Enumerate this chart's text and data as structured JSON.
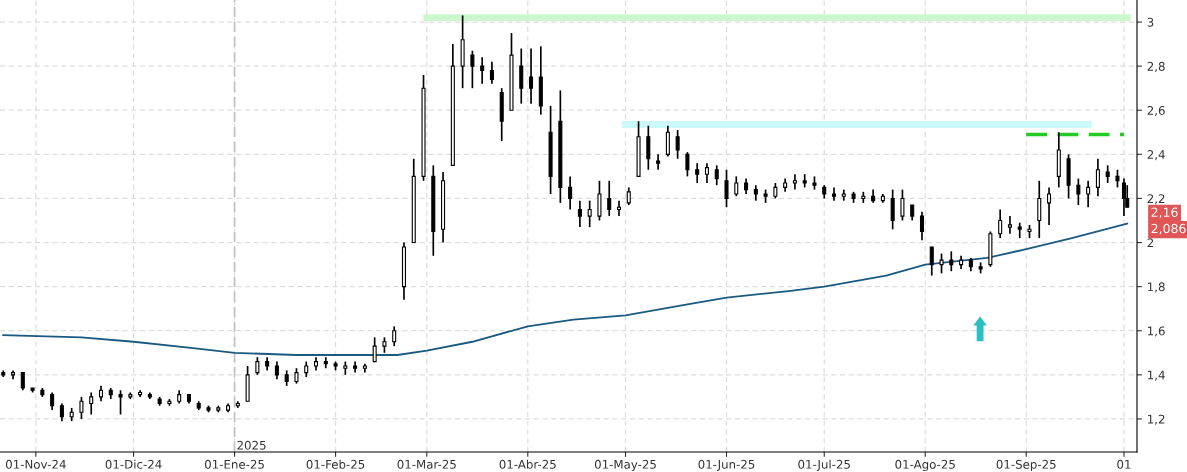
{
  "chart_data": {
    "type": "candlestick",
    "color": "#000000",
    "x": [
      "2024-10-22",
      "2024-10-25",
      "2024-10-28",
      "2024-10-31",
      "2024-11-03",
      "2024-11-06",
      "2024-11-09",
      "2024-11-12",
      "2024-11-15",
      "2024-11-18",
      "2024-11-21",
      "2024-11-24",
      "2024-11-27",
      "2024-11-30",
      "2024-12-03",
      "2024-12-06",
      "2024-12-09",
      "2024-12-12",
      "2024-12-15",
      "2024-12-18",
      "2024-12-21",
      "2024-12-24",
      "2024-12-27",
      "2024-12-30",
      "2025-01-02",
      "2025-01-05",
      "2025-01-08",
      "2025-01-11",
      "2025-01-14",
      "2025-01-17",
      "2025-01-20",
      "2025-01-23",
      "2025-01-26",
      "2025-01-29",
      "2025-02-01",
      "2025-02-04",
      "2025-02-07",
      "2025-02-10",
      "2025-02-13",
      "2025-02-16",
      "2025-02-19",
      "2025-02-22",
      "2025-02-25",
      "2025-02-28",
      "2025-03-03",
      "2025-03-06",
      "2025-03-09",
      "2025-03-12",
      "2025-03-15",
      "2025-03-18",
      "2025-03-21",
      "2025-03-24",
      "2025-03-27",
      "2025-03-30",
      "2025-04-02",
      "2025-04-05",
      "2025-04-08",
      "2025-04-11",
      "2025-04-14",
      "2025-04-17",
      "2025-04-20",
      "2025-04-23",
      "2025-04-26",
      "2025-04-29",
      "2025-05-02",
      "2025-05-05",
      "2025-05-08",
      "2025-05-11",
      "2025-05-14",
      "2025-05-17",
      "2025-05-20",
      "2025-05-23",
      "2025-05-26",
      "2025-05-29",
      "2025-06-01",
      "2025-06-04",
      "2025-06-07",
      "2025-06-10",
      "2025-06-13",
      "2025-06-16",
      "2025-06-19",
      "2025-06-22",
      "2025-06-25",
      "2025-06-28",
      "2025-07-01",
      "2025-07-04",
      "2025-07-07",
      "2025-07-10",
      "2025-07-13",
      "2025-07-16",
      "2025-07-19",
      "2025-07-22",
      "2025-07-25",
      "2025-07-28",
      "2025-07-31",
      "2025-08-03",
      "2025-08-06",
      "2025-08-09",
      "2025-08-12",
      "2025-08-15",
      "2025-08-18",
      "2025-08-21",
      "2025-08-24",
      "2025-08-27",
      "2025-08-30",
      "2025-09-02",
      "2025-09-05",
      "2025-09-08",
      "2025-09-11",
      "2025-09-14",
      "2025-09-17",
      "2025-09-20",
      "2025-09-23",
      "2025-09-26",
      "2025-09-29",
      "2025-10-01",
      "2025-10-02"
    ],
    "ohlc": [
      [
        1.41,
        1.42,
        1.39,
        1.4
      ],
      [
        1.4,
        1.42,
        1.38,
        1.41
      ],
      [
        1.41,
        1.41,
        1.33,
        1.34
      ],
      [
        1.34,
        1.34,
        1.32,
        1.33
      ],
      [
        1.33,
        1.34,
        1.3,
        1.31
      ],
      [
        1.31,
        1.32,
        1.24,
        1.26
      ],
      [
        1.26,
        1.27,
        1.19,
        1.21
      ],
      [
        1.21,
        1.25,
        1.19,
        1.23
      ],
      [
        1.23,
        1.3,
        1.2,
        1.28
      ],
      [
        1.27,
        1.32,
        1.22,
        1.3
      ],
      [
        1.3,
        1.35,
        1.28,
        1.33
      ],
      [
        1.33,
        1.34,
        1.29,
        1.31
      ],
      [
        1.31,
        1.33,
        1.22,
        1.3
      ],
      [
        1.3,
        1.32,
        1.29,
        1.31
      ],
      [
        1.31,
        1.33,
        1.3,
        1.32
      ],
      [
        1.31,
        1.32,
        1.29,
        1.3
      ],
      [
        1.29,
        1.3,
        1.26,
        1.27
      ],
      [
        1.27,
        1.29,
        1.26,
        1.28
      ],
      [
        1.28,
        1.33,
        1.27,
        1.31
      ],
      [
        1.31,
        1.31,
        1.27,
        1.28
      ],
      [
        1.27,
        1.28,
        1.24,
        1.25
      ],
      [
        1.25,
        1.26,
        1.23,
        1.24
      ],
      [
        1.24,
        1.26,
        1.23,
        1.25
      ],
      [
        1.24,
        1.27,
        1.23,
        1.26
      ],
      [
        1.26,
        1.28,
        1.25,
        1.27
      ],
      [
        1.28,
        1.44,
        1.28,
        1.4
      ],
      [
        1.41,
        1.48,
        1.4,
        1.46
      ],
      [
        1.46,
        1.48,
        1.42,
        1.44
      ],
      [
        1.44,
        1.46,
        1.38,
        1.4
      ],
      [
        1.4,
        1.42,
        1.35,
        1.37
      ],
      [
        1.37,
        1.43,
        1.36,
        1.41
      ],
      [
        1.41,
        1.46,
        1.39,
        1.44
      ],
      [
        1.44,
        1.48,
        1.42,
        1.46
      ],
      [
        1.46,
        1.48,
        1.43,
        1.45
      ],
      [
        1.45,
        1.46,
        1.42,
        1.44
      ],
      [
        1.43,
        1.46,
        1.4,
        1.44
      ],
      [
        1.44,
        1.46,
        1.41,
        1.43
      ],
      [
        1.43,
        1.45,
        1.41,
        1.44
      ],
      [
        1.46,
        1.57,
        1.46,
        1.53
      ],
      [
        1.53,
        1.57,
        1.5,
        1.55
      ],
      [
        1.55,
        1.62,
        1.53,
        1.6
      ],
      [
        1.8,
        2.0,
        1.74,
        1.98
      ],
      [
        2.0,
        2.38,
        2.0,
        2.3
      ],
      [
        2.3,
        2.76,
        2.28,
        2.7
      ],
      [
        2.3,
        2.35,
        1.94,
        2.05
      ],
      [
        2.06,
        2.32,
        2.0,
        2.28
      ],
      [
        2.35,
        2.9,
        2.35,
        2.8
      ],
      [
        2.8,
        3.03,
        2.7,
        2.92
      ],
      [
        2.85,
        2.87,
        2.7,
        2.8
      ],
      [
        2.8,
        2.84,
        2.72,
        2.78
      ],
      [
        2.78,
        2.82,
        2.72,
        2.74
      ],
      [
        2.68,
        2.7,
        2.46,
        2.55
      ],
      [
        2.6,
        2.95,
        2.6,
        2.85
      ],
      [
        2.8,
        2.88,
        2.63,
        2.7
      ],
      [
        2.75,
        2.88,
        2.63,
        2.7
      ],
      [
        2.75,
        2.89,
        2.58,
        2.62
      ],
      [
        2.5,
        2.62,
        2.22,
        2.3
      ],
      [
        2.55,
        2.69,
        2.18,
        2.25
      ],
      [
        2.25,
        2.3,
        2.15,
        2.2
      ],
      [
        2.15,
        2.19,
        2.07,
        2.12
      ],
      [
        2.12,
        2.19,
        2.07,
        2.15
      ],
      [
        2.12,
        2.28,
        2.1,
        2.22
      ],
      [
        2.2,
        2.28,
        2.12,
        2.15
      ],
      [
        2.15,
        2.19,
        2.12,
        2.16
      ],
      [
        2.18,
        2.25,
        2.17,
        2.23
      ],
      [
        2.3,
        2.55,
        2.3,
        2.48
      ],
      [
        2.48,
        2.53,
        2.33,
        2.38
      ],
      [
        2.37,
        2.4,
        2.33,
        2.36
      ],
      [
        2.4,
        2.53,
        2.39,
        2.5
      ],
      [
        2.48,
        2.51,
        2.38,
        2.42
      ],
      [
        2.4,
        2.41,
        2.3,
        2.33
      ],
      [
        2.33,
        2.36,
        2.27,
        2.31
      ],
      [
        2.31,
        2.36,
        2.27,
        2.34
      ],
      [
        2.33,
        2.35,
        2.26,
        2.29
      ],
      [
        2.28,
        2.33,
        2.16,
        2.2
      ],
      [
        2.22,
        2.3,
        2.21,
        2.27
      ],
      [
        2.27,
        2.29,
        2.22,
        2.24
      ],
      [
        2.24,
        2.26,
        2.19,
        2.22
      ],
      [
        2.22,
        2.24,
        2.18,
        2.21
      ],
      [
        2.21,
        2.27,
        2.2,
        2.25
      ],
      [
        2.25,
        2.29,
        2.23,
        2.27
      ],
      [
        2.27,
        2.31,
        2.24,
        2.28
      ],
      [
        2.28,
        2.31,
        2.25,
        2.27
      ],
      [
        2.27,
        2.3,
        2.24,
        2.26
      ],
      [
        2.25,
        2.26,
        2.2,
        2.22
      ],
      [
        2.22,
        2.25,
        2.19,
        2.21
      ],
      [
        2.21,
        2.24,
        2.19,
        2.22
      ],
      [
        2.22,
        2.23,
        2.18,
        2.2
      ],
      [
        2.2,
        2.23,
        2.18,
        2.21
      ],
      [
        2.21,
        2.24,
        2.18,
        2.19
      ],
      [
        2.19,
        2.22,
        2.18,
        2.21
      ],
      [
        2.2,
        2.24,
        2.06,
        2.1
      ],
      [
        2.12,
        2.24,
        2.1,
        2.2
      ],
      [
        2.17,
        2.17,
        2.1,
        2.12
      ],
      [
        2.12,
        2.14,
        2.01,
        2.05
      ],
      [
        1.98,
        1.98,
        1.85,
        1.9
      ],
      [
        1.9,
        1.95,
        1.86,
        1.92
      ],
      [
        1.92,
        1.96,
        1.87,
        1.9
      ],
      [
        1.9,
        1.94,
        1.88,
        1.92
      ],
      [
        1.92,
        1.93,
        1.87,
        1.89
      ],
      [
        1.89,
        1.91,
        1.86,
        1.88
      ],
      [
        1.9,
        2.05,
        1.89,
        2.04
      ],
      [
        2.04,
        2.15,
        2.02,
        2.1
      ],
      [
        2.07,
        2.12,
        2.04,
        2.08
      ],
      [
        2.07,
        2.09,
        2.02,
        2.06
      ],
      [
        2.05,
        2.08,
        2.02,
        2.06
      ],
      [
        2.1,
        2.28,
        2.02,
        2.2
      ],
      [
        2.18,
        2.25,
        2.08,
        2.22
      ],
      [
        2.3,
        2.5,
        2.25,
        2.42
      ],
      [
        2.38,
        2.4,
        2.2,
        2.26
      ],
      [
        2.26,
        2.29,
        2.17,
        2.22
      ],
      [
        2.22,
        2.28,
        2.16,
        2.25
      ],
      [
        2.25,
        2.38,
        2.21,
        2.33
      ],
      [
        2.32,
        2.35,
        2.27,
        2.3
      ],
      [
        2.3,
        2.33,
        2.25,
        2.28
      ],
      [
        2.27,
        2.29,
        2.12,
        2.2
      ],
      [
        2.2,
        2.26,
        2.16,
        2.16
      ]
    ],
    "series": [
      {
        "type": "line",
        "color": "#1b5a80",
        "x": [
          "2024-10-22",
          "2024-11-15",
          "2024-12-01",
          "2024-12-20",
          "2025-01-01",
          "2025-01-20",
          "2025-02-10",
          "2025-02-20",
          "2025-03-01",
          "2025-03-15",
          "2025-04-01",
          "2025-04-15",
          "2025-05-01",
          "2025-05-20",
          "2025-06-01",
          "2025-06-20",
          "2025-07-01",
          "2025-07-20",
          "2025-08-01",
          "2025-08-20",
          "2025-09-01",
          "2025-09-15",
          "2025-10-02"
        ],
        "values": [
          1.58,
          1.57,
          1.55,
          1.52,
          1.5,
          1.49,
          1.49,
          1.49,
          1.51,
          1.55,
          1.62,
          1.65,
          1.67,
          1.72,
          1.75,
          1.78,
          1.8,
          1.85,
          1.9,
          1.93,
          1.97,
          2.02,
          2.086
        ]
      },
      {
        "type": "line",
        "color": "#ccf7cc",
        "x": [
          "2025-03-01",
          "2025-10-02"
        ],
        "values": [
          3.02,
          3.02
        ]
      },
      {
        "type": "line",
        "color": "#ccfafa",
        "x": [
          "2025-05-01",
          "2025-09-20"
        ],
        "values": [
          2.535,
          2.535
        ]
      },
      {
        "type": "line",
        "color": "#22cc22",
        "line_style": "dashed",
        "x": [
          "2025-09-01",
          "2025-10-01"
        ],
        "values": [
          2.49,
          2.49
        ]
      }
    ],
    "ref_lines": [
      {
        "axis": "x",
        "value": "2025-01-01",
        "label": "2025",
        "color": "#c0c0c0",
        "line_style": "dashed"
      }
    ],
    "annotations": [
      "2,16",
      "2,086"
    ],
    "xlim": [
      "2024-10-21",
      "2025-10-05"
    ],
    "xticks": [
      {
        "value": "2024-11-01",
        "label": "01-Nov-24"
      },
      {
        "value": "2024-12-01",
        "label": "01-Dic-24"
      },
      {
        "value": "2025-01-01",
        "label": "01-Ene-25"
      },
      {
        "value": "2025-02-01",
        "label": "01-Feb-25"
      },
      {
        "value": "2025-03-01",
        "label": "01-Mar-25"
      },
      {
        "value": "2025-04-01",
        "label": "01-Abr-25"
      },
      {
        "value": "2025-05-01",
        "label": "01-May-25"
      },
      {
        "value": "2025-06-01",
        "label": "01-Jun-25"
      },
      {
        "value": "2025-07-01",
        "label": "01-Jul-25"
      },
      {
        "value": "2025-08-01",
        "label": "01-Ago-25"
      },
      {
        "value": "2025-09-01",
        "label": "01-Sep-25"
      },
      {
        "value": "2025-10-01",
        "label": "01"
      }
    ],
    "ylim": [
      1.05,
      3.1
    ],
    "yticks": [
      {
        "value": 1.2,
        "label": "1,2"
      },
      {
        "value": 1.4,
        "label": "1,4"
      },
      {
        "value": 1.6,
        "label": "1,6"
      },
      {
        "value": 1.8,
        "label": "1,8"
      },
      2,
      {
        "value": 2.2,
        "label": "2,2"
      },
      {
        "value": 2.4,
        "label": "2,4"
      },
      {
        "value": 2.6,
        "label": "2,6"
      },
      {
        "value": 2.8,
        "label": "2,8"
      },
      3
    ],
    "grid": true,
    "legend": false
  }
}
